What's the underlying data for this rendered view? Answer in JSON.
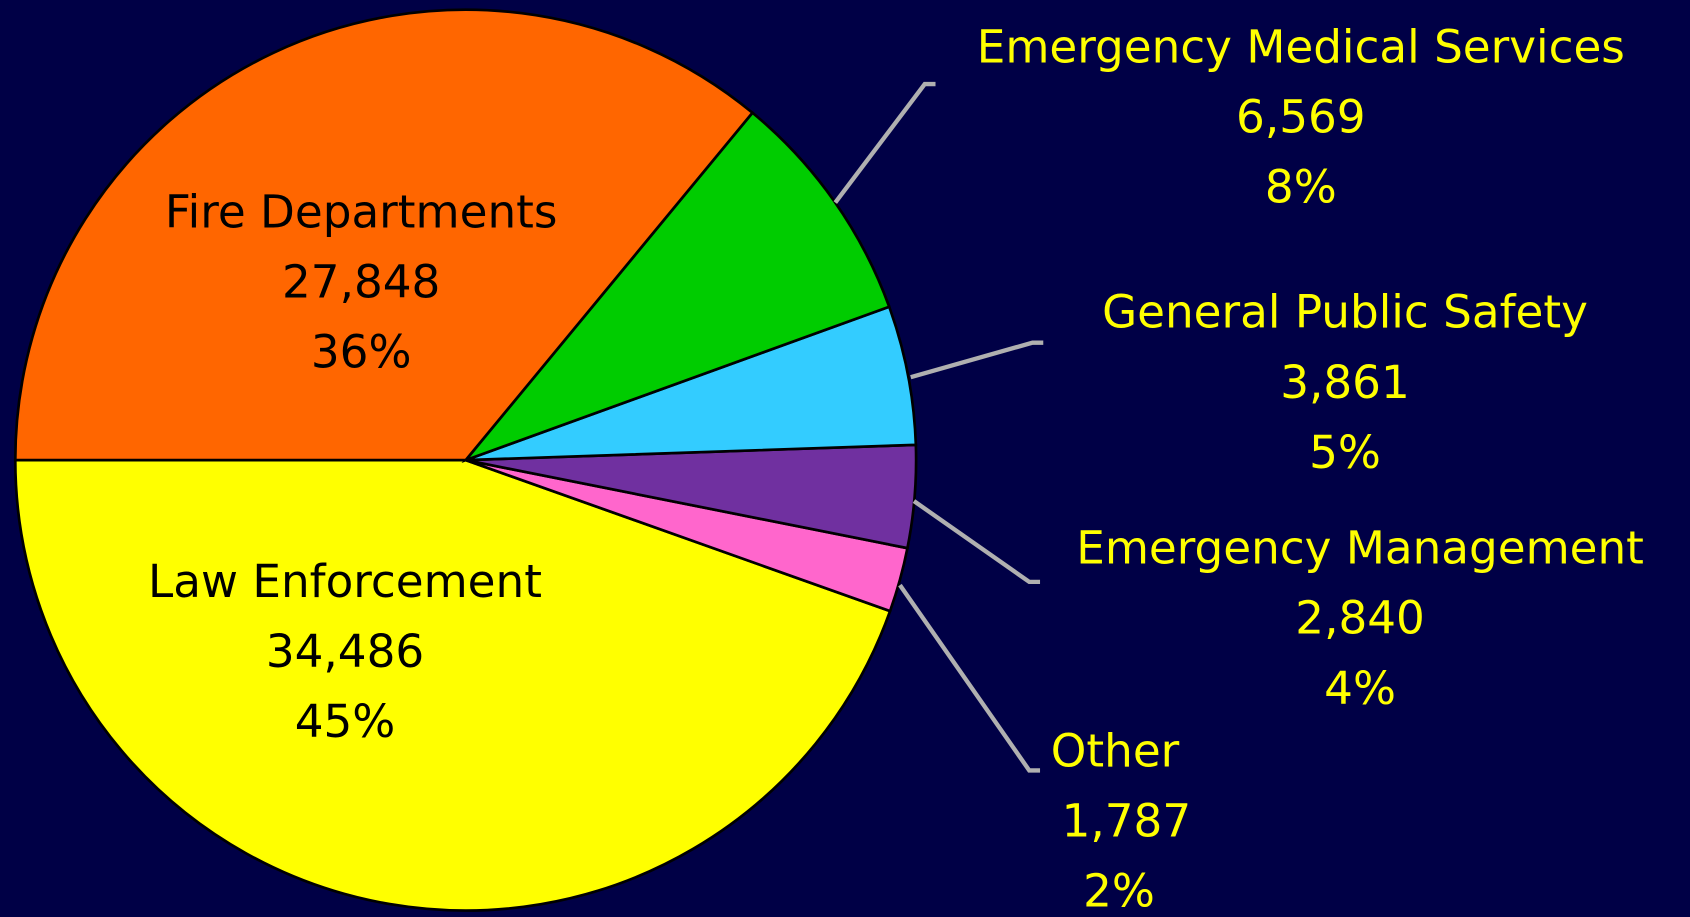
{
  "chart_data": {
    "type": "pie",
    "categories": [
      "Law Enforcement",
      "Other",
      "Emergency Management",
      "General Public Safety",
      "Emergency Medical Services",
      "Fire Departments"
    ],
    "values": [
      34486,
      1787,
      2840,
      3861,
      6569,
      27848
    ],
    "value_labels": [
      "34,486",
      "1,787",
      "2,840",
      "3,861",
      "6,569",
      "27,848"
    ],
    "percent_labels": [
      "45%",
      "2%",
      "4%",
      "5%",
      "8%",
      "36%"
    ],
    "colors": [
      "#ffff00",
      "#ff66cc",
      "#7030a0",
      "#33ccff",
      "#00cc00",
      "#ff6600"
    ]
  }
}
